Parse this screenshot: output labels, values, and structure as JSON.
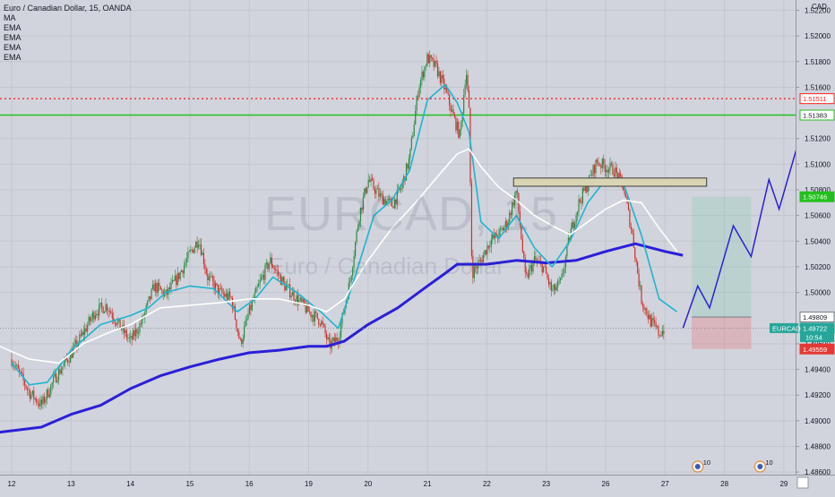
{
  "header": {
    "title": "Euro / Canadian Dollar, 15, OANDA",
    "indicators": [
      "MA",
      "EMA",
      "EMA",
      "EMA",
      "EMA"
    ]
  },
  "watermark": {
    "symbol": "EURCAD, 15",
    "name": "Euro / Canadian Dollar"
  },
  "colors": {
    "background": "#d1d4dc",
    "grid": "#c3c6ce",
    "ma_blue": "#2b1fd8",
    "ema_cyan": "#1eb4d0",
    "ema_white": "#ffffff",
    "candle_red": "#d0302c",
    "candle_green": "#2a8a45",
    "resistance_red": "#ff2222",
    "resistance_green": "#22c01e",
    "current_price": "#26a69a",
    "target_zone": "rgba(120,200,170,0.25)",
    "stop_zone": "rgba(230,120,130,0.35)"
  },
  "chart_data": {
    "type": "candlestick",
    "symbol": "EURCAD",
    "timeframe": "15",
    "currency": "CAD",
    "x_ticks": [
      "12",
      "13",
      "14",
      "15",
      "16",
      "19",
      "20",
      "21",
      "22",
      "23",
      "26",
      "27",
      "28",
      "29"
    ],
    "y_ticks": [
      "1.52200",
      "1.52000",
      "1.51800",
      "1.51600",
      "1.51200",
      "1.51000",
      "1.50800",
      "1.50600",
      "1.50400",
      "1.50200",
      "1.50000",
      "1.49600",
      "1.49400",
      "1.49200",
      "1.49000",
      "1.48800",
      "1.48600"
    ],
    "ylim": [
      1.4858,
      1.5228
    ],
    "price_labels": [
      {
        "value": 1.51511,
        "text": "1.51511",
        "kind": "red-line"
      },
      {
        "value": 1.51383,
        "text": "1.51383",
        "kind": "green-line"
      },
      {
        "value": 1.50746,
        "text": "1.50746",
        "kind": "target"
      },
      {
        "value": 1.49809,
        "text": "1.49809",
        "kind": "entry"
      },
      {
        "value": 1.49722,
        "text": "1.49722",
        "kind": "current",
        "symbol": "EURCAD",
        "countdown": "10:54"
      },
      {
        "value": 1.49559,
        "text": "1.49559",
        "kind": "stop"
      }
    ],
    "horizontal_lines": [
      {
        "value": 1.51511,
        "style": "dotted",
        "color": "#ff2222"
      },
      {
        "value": 1.51383,
        "style": "solid",
        "color": "#22c01e"
      }
    ],
    "close_path": [
      [
        0.0,
        1.4948
      ],
      [
        0.15,
        1.4935
      ],
      [
        0.3,
        1.4922
      ],
      [
        0.5,
        1.4912
      ],
      [
        0.75,
        1.4935
      ],
      [
        1.0,
        1.4952
      ],
      [
        1.2,
        1.4968
      ],
      [
        1.4,
        1.4985
      ],
      [
        1.6,
        1.499
      ],
      [
        1.8,
        1.4975
      ],
      [
        2.0,
        1.4962
      ],
      [
        2.2,
        1.4978
      ],
      [
        2.4,
        1.5005
      ],
      [
        2.6,
        1.4998
      ],
      [
        2.8,
        1.5012
      ],
      [
        3.0,
        1.503
      ],
      [
        3.15,
        1.5042
      ],
      [
        3.3,
        1.5012
      ],
      [
        3.5,
        1.5
      ],
      [
        3.7,
        1.4995
      ],
      [
        3.85,
        1.496
      ],
      [
        4.0,
        1.4985
      ],
      [
        4.2,
        1.501
      ],
      [
        4.35,
        1.5025
      ],
      [
        4.6,
        1.5005
      ],
      [
        4.8,
        1.4995
      ],
      [
        5.0,
        1.4985
      ],
      [
        5.2,
        1.4978
      ],
      [
        5.35,
        1.4958
      ],
      [
        5.5,
        1.4965
      ],
      [
        5.7,
        1.501
      ],
      [
        5.85,
        1.506
      ],
      [
        6.0,
        1.5088
      ],
      [
        6.2,
        1.5075
      ],
      [
        6.4,
        1.5068
      ],
      [
        6.55,
        1.508
      ],
      [
        6.7,
        1.5105
      ],
      [
        6.85,
        1.516
      ],
      [
        7.0,
        1.5183
      ],
      [
        7.15,
        1.5175
      ],
      [
        7.3,
        1.5158
      ],
      [
        7.45,
        1.5135
      ],
      [
        7.55,
        1.5122
      ],
      [
        7.65,
        1.5175
      ],
      [
        7.7,
        1.514
      ],
      [
        7.75,
        1.5015
      ],
      [
        7.9,
        1.5025
      ],
      [
        8.05,
        1.504
      ],
      [
        8.2,
        1.5045
      ],
      [
        8.35,
        1.5055
      ],
      [
        8.5,
        1.508
      ],
      [
        8.65,
        1.501
      ],
      [
        8.8,
        1.5025
      ],
      [
        8.95,
        1.502
      ],
      [
        9.1,
        1.5
      ],
      [
        9.25,
        1.5008
      ],
      [
        9.4,
        1.5045
      ],
      [
        9.55,
        1.507
      ],
      [
        9.7,
        1.5085
      ],
      [
        9.85,
        1.5102
      ],
      [
        10.0,
        1.5098
      ],
      [
        10.15,
        1.5095
      ],
      [
        10.3,
        1.5082
      ],
      [
        10.45,
        1.5045
      ],
      [
        10.6,
        1.4995
      ],
      [
        10.75,
        1.4978
      ],
      [
        10.9,
        1.4968
      ],
      [
        11.0,
        1.4972
      ]
    ],
    "series": [
      {
        "name": "MA",
        "color": "#2b1fd8",
        "points": [
          [
            -0.2,
            1.4891
          ],
          [
            0.5,
            1.4895
          ],
          [
            1.0,
            1.4905
          ],
          [
            1.5,
            1.4912
          ],
          [
            2.0,
            1.4925
          ],
          [
            2.5,
            1.4935
          ],
          [
            3.0,
            1.4942
          ],
          [
            3.5,
            1.4948
          ],
          [
            4.0,
            1.4953
          ],
          [
            4.5,
            1.4955
          ],
          [
            5.0,
            1.4958
          ],
          [
            5.3,
            1.4958
          ],
          [
            5.6,
            1.4962
          ],
          [
            6.0,
            1.4975
          ],
          [
            6.5,
            1.4988
          ],
          [
            7.0,
            1.5005
          ],
          [
            7.3,
            1.5015
          ],
          [
            7.5,
            1.5022
          ],
          [
            8.0,
            1.5022
          ],
          [
            8.5,
            1.5025
          ],
          [
            9.0,
            1.5023
          ],
          [
            9.5,
            1.5025
          ],
          [
            10.0,
            1.5032
          ],
          [
            10.5,
            1.5038
          ],
          [
            11.0,
            1.5032
          ],
          [
            11.3,
            1.5029
          ]
        ]
      },
      {
        "name": "EMA",
        "color": "#1eb4d0",
        "points": [
          [
            0.0,
            1.4945
          ],
          [
            0.3,
            1.4928
          ],
          [
            0.6,
            1.493
          ],
          [
            1.0,
            1.4955
          ],
          [
            1.5,
            1.4975
          ],
          [
            2.0,
            1.4982
          ],
          [
            2.3,
            1.4988
          ],
          [
            2.6,
            1.5
          ],
          [
            3.0,
            1.5005
          ],
          [
            3.4,
            1.5003
          ],
          [
            3.8,
            1.4985
          ],
          [
            4.1,
            1.4995
          ],
          [
            4.4,
            1.5012
          ],
          [
            4.8,
            1.5
          ],
          [
            5.2,
            1.4985
          ],
          [
            5.5,
            1.4972
          ],
          [
            5.8,
            1.5015
          ],
          [
            6.1,
            1.506
          ],
          [
            6.4,
            1.5072
          ],
          [
            6.7,
            1.5095
          ],
          [
            7.0,
            1.515
          ],
          [
            7.3,
            1.5162
          ],
          [
            7.5,
            1.5148
          ],
          [
            7.7,
            1.5125
          ],
          [
            7.9,
            1.5055
          ],
          [
            8.2,
            1.5042
          ],
          [
            8.5,
            1.506
          ],
          [
            8.8,
            1.5035
          ],
          [
            9.1,
            1.502
          ],
          [
            9.4,
            1.504
          ],
          [
            9.7,
            1.507
          ],
          [
            10.0,
            1.5088
          ],
          [
            10.3,
            1.5085
          ],
          [
            10.6,
            1.5045
          ],
          [
            10.9,
            1.4995
          ],
          [
            11.2,
            1.4985
          ]
        ]
      },
      {
        "name": "EMA",
        "color": "#ffffff",
        "points": [
          [
            -0.2,
            1.4958
          ],
          [
            0.3,
            1.4948
          ],
          [
            0.8,
            1.4945
          ],
          [
            1.2,
            1.496
          ],
          [
            1.6,
            1.4968
          ],
          [
            2.0,
            1.4975
          ],
          [
            2.5,
            1.4988
          ],
          [
            3.0,
            1.499
          ],
          [
            3.5,
            1.4992
          ],
          [
            4.0,
            1.4995
          ],
          [
            4.5,
            1.4995
          ],
          [
            5.0,
            1.499
          ],
          [
            5.3,
            1.4985
          ],
          [
            5.6,
            1.4995
          ],
          [
            6.0,
            1.5025
          ],
          [
            6.4,
            1.505
          ],
          [
            6.8,
            1.507
          ],
          [
            7.2,
            1.5092
          ],
          [
            7.5,
            1.5108
          ],
          [
            7.7,
            1.5112
          ],
          [
            7.9,
            1.5098
          ],
          [
            8.2,
            1.5082
          ],
          [
            8.5,
            1.5072
          ],
          [
            8.8,
            1.506
          ],
          [
            9.1,
            1.5052
          ],
          [
            9.4,
            1.5045
          ],
          [
            9.7,
            1.5055
          ],
          [
            10.0,
            1.5065
          ],
          [
            10.3,
            1.5072
          ],
          [
            10.6,
            1.507
          ],
          [
            10.9,
            1.505
          ],
          [
            11.2,
            1.5032
          ]
        ]
      }
    ],
    "annotations": {
      "supply_zone": {
        "x0": 8.45,
        "x1": 11.7,
        "y0": 1.50828,
        "y1": 1.50892
      },
      "target_box": {
        "x0": 11.45,
        "x1": 12.45,
        "y0": 1.49809,
        "y1": 1.50746
      },
      "stop_box": {
        "x0": 11.45,
        "x1": 12.45,
        "y0": 1.49559,
        "y1": 1.49809
      },
      "projection": [
        [
          11.3,
          1.4972
        ],
        [
          11.55,
          1.5005
        ],
        [
          11.75,
          1.4988
        ],
        [
          12.15,
          1.5052
        ],
        [
          12.45,
          1.5028
        ],
        [
          12.75,
          1.5088
        ],
        [
          12.92,
          1.5065
        ],
        [
          13.2,
          1.511
        ],
        [
          13.3,
          1.5102
        ]
      ]
    },
    "event_markers": [
      {
        "x": 11.55,
        "label": "10"
      },
      {
        "x": 12.6,
        "label": "10"
      },
      {
        "x": 13.8,
        "label": ""
      }
    ]
  }
}
